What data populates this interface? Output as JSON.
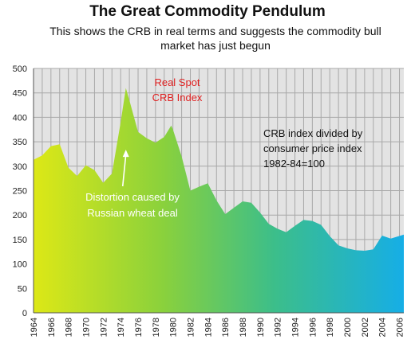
{
  "chart_data": {
    "type": "area",
    "title": "The Great Commodity Pendulum",
    "subtitle": "This shows the CRB in real terms and suggests the commodity bull market has just begun",
    "xlabel": "",
    "ylabel": "",
    "ylim": [
      0,
      500
    ],
    "xlim": [
      1964,
      2006.5
    ],
    "grid": true,
    "yticks": [
      0,
      50,
      100,
      150,
      200,
      250,
      300,
      350,
      400,
      450,
      500
    ],
    "xticks": [
      "1964",
      "1966",
      "1968",
      "1970",
      "1972",
      "1974",
      "1976",
      "1978",
      "1980",
      "1982",
      "1984",
      "1986",
      "1988",
      "1990",
      "1992",
      "1994",
      "1996",
      "1998",
      "2000",
      "2002",
      "2004",
      "2006"
    ],
    "x": [
      1964,
      1965,
      1966,
      1967,
      1968,
      1969,
      1970,
      1971,
      1972,
      1973,
      1974,
      1974.6,
      1975,
      1976,
      1977,
      1978,
      1979,
      1979.8,
      1980,
      1981,
      1982,
      1983,
      1984,
      1985,
      1986,
      1987,
      1988,
      1989,
      1990,
      1991,
      1992,
      1993,
      1994,
      1995,
      1996,
      1997,
      1998,
      1999,
      2000,
      2001,
      2002,
      2003,
      2004,
      2005,
      2006.5
    ],
    "y": [
      313,
      322,
      341,
      345,
      297,
      280,
      302,
      292,
      266,
      285,
      390,
      460,
      435,
      370,
      357,
      348,
      360,
      383,
      375,
      320,
      250,
      258,
      265,
      230,
      202,
      215,
      228,
      225,
      205,
      182,
      172,
      165,
      178,
      190,
      188,
      180,
      157,
      138,
      132,
      128,
      127,
      130,
      158,
      152,
      160
    ],
    "annotations": {
      "series_label": [
        "Real Spot",
        "CRB Index"
      ],
      "series_label_color": "#e02020",
      "note": [
        "CRB index divided by",
        "consumer price index",
        "1982-84=100"
      ],
      "callout": [
        "Distortion caused by",
        "Russian wheat deal"
      ],
      "callout_points_to": [
        1974.6,
        350
      ]
    },
    "colors": {
      "plot_background": "#e3e3e3",
      "grid": "#a8a8a8",
      "area_gradient": [
        "#dde816",
        "#8ad13c",
        "#3cbe8a",
        "#16aee6"
      ]
    }
  }
}
